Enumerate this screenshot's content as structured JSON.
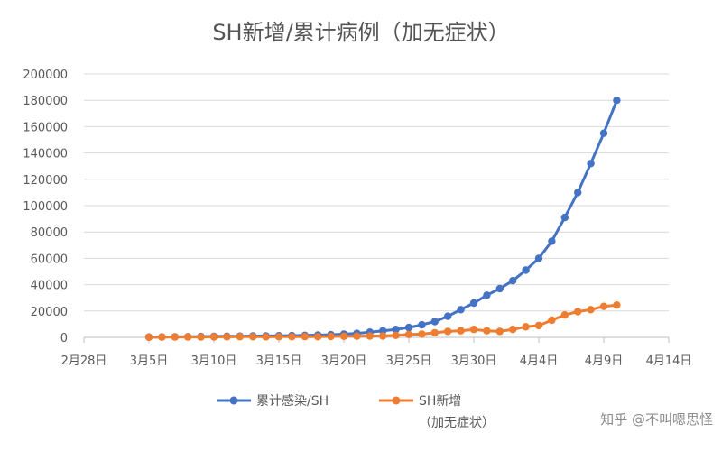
{
  "chart_data": {
    "type": "line",
    "title": "SH新增/累计病例（加无症状）",
    "xlabel": "",
    "ylabel": "",
    "ylim": [
      0,
      200000
    ],
    "ytick_labels": [
      "0",
      "20000",
      "40000",
      "60000",
      "80000",
      "100000",
      "120000",
      "140000",
      "160000",
      "180000",
      "200000"
    ],
    "xlim": [
      "2022-02-28",
      "2022-04-14"
    ],
    "xtick_labels": [
      "2月28日",
      "3月5日",
      "3月10日",
      "3月15日",
      "3月20日",
      "3月25日",
      "3月30日",
      "4月4日",
      "4月9日",
      "4月14日"
    ],
    "grid": true,
    "legend_position": "bottom",
    "series": [
      {
        "name": "累计感染/SH",
        "color": "#4472C4",
        "values": [
          [
            "2022-03-05",
            200
          ],
          [
            "2022-03-06",
            300
          ],
          [
            "2022-03-07",
            400
          ],
          [
            "2022-03-08",
            500
          ],
          [
            "2022-03-09",
            600
          ],
          [
            "2022-03-10",
            700
          ],
          [
            "2022-03-11",
            800
          ],
          [
            "2022-03-12",
            900
          ],
          [
            "2022-03-13",
            1000
          ],
          [
            "2022-03-14",
            1100
          ],
          [
            "2022-03-15",
            1200
          ],
          [
            "2022-03-16",
            1300
          ],
          [
            "2022-03-17",
            1500
          ],
          [
            "2022-03-18",
            1700
          ],
          [
            "2022-03-19",
            2000
          ],
          [
            "2022-03-20",
            2500
          ],
          [
            "2022-03-21",
            3000
          ],
          [
            "2022-03-22",
            4000
          ],
          [
            "2022-03-23",
            5000
          ],
          [
            "2022-03-24",
            6000
          ],
          [
            "2022-03-25",
            7500
          ],
          [
            "2022-03-26",
            9500
          ],
          [
            "2022-03-27",
            12000
          ],
          [
            "2022-03-28",
            16000
          ],
          [
            "2022-03-29",
            21000
          ],
          [
            "2022-03-30",
            26000
          ],
          [
            "2022-03-31",
            32000
          ],
          [
            "2022-04-01",
            37000
          ],
          [
            "2022-04-02",
            43000
          ],
          [
            "2022-04-03",
            51000
          ],
          [
            "2022-04-04",
            60000
          ],
          [
            "2022-04-05",
            73000
          ],
          [
            "2022-04-06",
            91000
          ],
          [
            "2022-04-07",
            110000
          ],
          [
            "2022-04-08",
            132000
          ],
          [
            "2022-04-09",
            155000
          ],
          [
            "2022-04-10",
            180000
          ]
        ]
      },
      {
        "name": "SH新增\n（加无症状）",
        "color": "#ED7D31",
        "values": [
          [
            "2022-03-05",
            100
          ],
          [
            "2022-03-06",
            200
          ],
          [
            "2022-03-07",
            250
          ],
          [
            "2022-03-08",
            300
          ],
          [
            "2022-03-09",
            300
          ],
          [
            "2022-03-10",
            350
          ],
          [
            "2022-03-11",
            400
          ],
          [
            "2022-03-12",
            500
          ],
          [
            "2022-03-13",
            450
          ],
          [
            "2022-03-14",
            400
          ],
          [
            "2022-03-15",
            500
          ],
          [
            "2022-03-16",
            500
          ],
          [
            "2022-03-17",
            600
          ],
          [
            "2022-03-18",
            500
          ],
          [
            "2022-03-19",
            700
          ],
          [
            "2022-03-20",
            800
          ],
          [
            "2022-03-21",
            900
          ],
          [
            "2022-03-22",
            1000
          ],
          [
            "2022-03-23",
            1000
          ],
          [
            "2022-03-24",
            1500
          ],
          [
            "2022-03-25",
            2200
          ],
          [
            "2022-03-26",
            2500
          ],
          [
            "2022-03-27",
            3500
          ],
          [
            "2022-03-28",
            4500
          ],
          [
            "2022-03-29",
            5000
          ],
          [
            "2022-03-30",
            6000
          ],
          [
            "2022-03-31",
            5000
          ],
          [
            "2022-04-01",
            4500
          ],
          [
            "2022-04-02",
            6000
          ],
          [
            "2022-04-03",
            8000
          ],
          [
            "2022-04-04",
            9000
          ],
          [
            "2022-04-05",
            13000
          ],
          [
            "2022-04-06",
            17000
          ],
          [
            "2022-04-07",
            19500
          ],
          [
            "2022-04-08",
            21000
          ],
          [
            "2022-04-09",
            23500
          ],
          [
            "2022-04-10",
            24500
          ]
        ]
      }
    ]
  },
  "watermark": "知乎 @不叫嗯思怪"
}
